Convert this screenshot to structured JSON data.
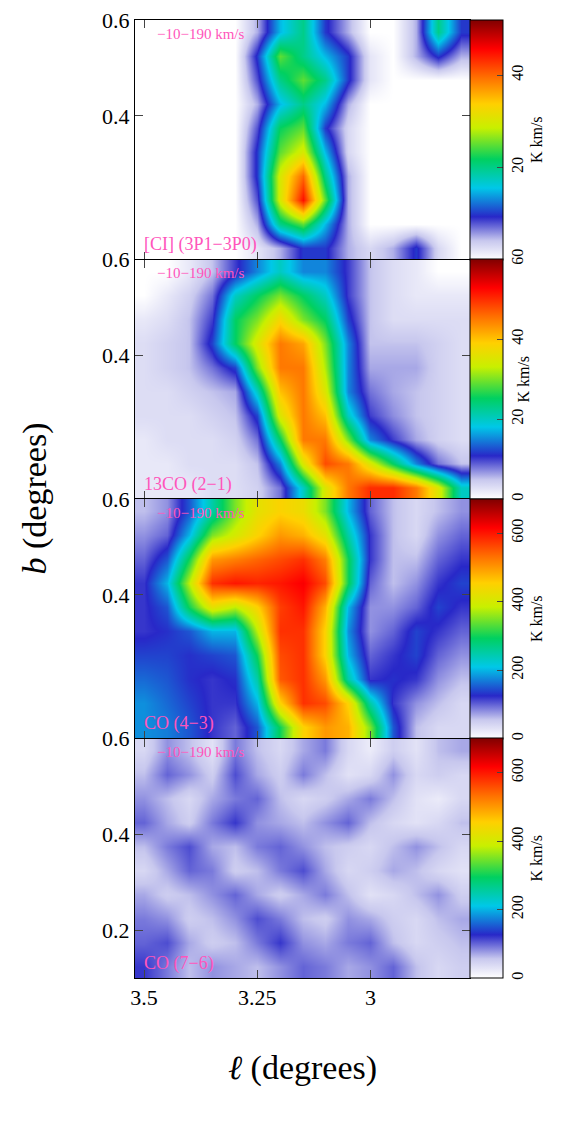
{
  "chart_data": [
    {
      "type": "heatmap",
      "title": "[CI] (3P1−3P0)",
      "annotation": "−10−190 km/s",
      "ylabel": "b (degrees)",
      "tick_labels": "y",
      "xlim": [
        3.52,
        2.78
      ],
      "ylim": [
        0.1,
        0.6
      ],
      "xticks": [
        3.5,
        3.25,
        3
      ],
      "yticks": [
        0.4,
        0.6
      ],
      "x": [
        3.5,
        3.45,
        3.4,
        3.35,
        3.3,
        3.25,
        3.2,
        3.15,
        3.1,
        3.05,
        3.0,
        2.95,
        2.9,
        2.85,
        2.8
      ],
      "y": [
        0.125,
        0.175,
        0.225,
        0.275,
        0.325,
        0.375,
        0.425,
        0.475,
        0.525,
        0.575
      ],
      "z": [
        [
          0,
          0,
          0,
          0,
          0,
          2,
          5,
          10,
          10,
          5,
          3,
          5,
          10,
          3,
          0
        ],
        [
          0,
          0,
          0,
          0,
          0,
          5,
          20,
          25,
          15,
          5,
          0,
          0,
          0,
          0,
          0
        ],
        [
          0,
          0,
          0,
          0,
          0,
          8,
          30,
          45,
          25,
          5,
          0,
          0,
          0,
          0,
          0
        ],
        [
          0,
          0,
          0,
          0,
          0,
          10,
          30,
          40,
          20,
          5,
          0,
          0,
          0,
          0,
          0
        ],
        [
          0,
          0,
          0,
          0,
          0,
          10,
          25,
          30,
          15,
          3,
          0,
          0,
          0,
          0,
          0
        ],
        [
          0,
          0,
          0,
          0,
          0,
          8,
          22,
          25,
          10,
          3,
          0,
          0,
          0,
          0,
          0
        ],
        [
          0,
          0,
          0,
          0,
          0,
          5,
          15,
          20,
          15,
          5,
          0,
          0,
          0,
          0,
          0
        ],
        [
          0,
          0,
          0,
          0,
          0,
          8,
          20,
          25,
          20,
          10,
          2,
          0,
          0,
          0,
          0
        ],
        [
          0,
          0,
          0,
          0,
          0,
          10,
          25,
          20,
          15,
          10,
          2,
          0,
          5,
          10,
          5
        ],
        [
          0,
          0,
          0,
          0,
          0,
          5,
          15,
          20,
          10,
          5,
          0,
          0,
          5,
          20,
          10
        ]
      ],
      "colorbar": {
        "range": [
          0,
          52
        ],
        "ticks": [
          20,
          40
        ],
        "label": "K km/s"
      }
    },
    {
      "type": "heatmap",
      "title": "13CO (2−1)",
      "annotation": "−10−190 km/s",
      "tick_labels": "y",
      "xlim": [
        3.52,
        2.78
      ],
      "ylim": [
        0.1,
        0.6
      ],
      "xticks": [
        3.5,
        3.25,
        3
      ],
      "yticks": [
        0.4,
        0.6
      ],
      "x": [
        3.5,
        3.45,
        3.4,
        3.35,
        3.3,
        3.25,
        3.2,
        3.15,
        3.1,
        3.05,
        3.0,
        2.95,
        2.9,
        2.85,
        2.8
      ],
      "y": [
        0.125,
        0.175,
        0.225,
        0.275,
        0.325,
        0.375,
        0.425,
        0.475,
        0.525,
        0.575
      ],
      "z": [
        [
          2,
          2,
          2,
          3,
          3,
          4,
          8,
          20,
          35,
          45,
          50,
          50,
          45,
          35,
          20
        ],
        [
          2,
          2,
          3,
          3,
          3,
          5,
          15,
          35,
          48,
          45,
          35,
          25,
          15,
          8,
          5
        ],
        [
          2,
          3,
          3,
          3,
          4,
          8,
          25,
          45,
          45,
          30,
          15,
          10,
          6,
          4,
          3
        ],
        [
          3,
          3,
          3,
          4,
          5,
          12,
          35,
          45,
          40,
          20,
          10,
          7,
          5,
          4,
          3
        ],
        [
          3,
          3,
          4,
          5,
          6,
          20,
          40,
          45,
          35,
          15,
          8,
          6,
          5,
          4,
          3
        ],
        [
          3,
          4,
          5,
          8,
          12,
          30,
          45,
          45,
          32,
          15,
          6,
          6,
          6,
          4,
          3
        ],
        [
          3,
          4,
          5,
          12,
          25,
          35,
          45,
          42,
          30,
          15,
          5,
          5,
          5,
          4,
          3
        ],
        [
          2,
          3,
          5,
          10,
          25,
          30,
          38,
          30,
          25,
          12,
          5,
          3,
          3,
          3,
          3
        ],
        [
          0,
          2,
          4,
          8,
          20,
          25,
          30,
          25,
          20,
          10,
          5,
          3,
          2,
          2,
          2
        ],
        [
          0,
          0,
          2,
          5,
          10,
          15,
          20,
          15,
          15,
          10,
          5,
          3,
          2,
          0,
          0
        ]
      ],
      "colorbar": {
        "range": [
          0,
          60
        ],
        "ticks": [
          0,
          20,
          40,
          60
        ],
        "label": "K km/s"
      }
    },
    {
      "type": "heatmap",
      "title": "CO (4−3)",
      "annotation": "−10−190 km/s",
      "tick_labels": "y",
      "xlim": [
        3.52,
        2.78
      ],
      "ylim": [
        0.1,
        0.6
      ],
      "xticks": [
        3.5,
        3.25,
        3
      ],
      "yticks": [
        0.4,
        0.6
      ],
      "x": [
        3.5,
        3.45,
        3.4,
        3.35,
        3.3,
        3.25,
        3.2,
        3.15,
        3.1,
        3.05,
        3.0,
        2.95,
        2.9,
        2.85,
        2.8
      ],
      "y": [
        0.125,
        0.175,
        0.225,
        0.275,
        0.325,
        0.375,
        0.425,
        0.475,
        0.525,
        0.575
      ],
      "z": [
        [
          180,
          170,
          150,
          120,
          100,
          150,
          300,
          450,
          500,
          480,
          350,
          150,
          60,
          40,
          40
        ],
        [
          180,
          160,
          140,
          120,
          120,
          200,
          450,
          580,
          560,
          450,
          250,
          120,
          80,
          60,
          40
        ],
        [
          160,
          150,
          130,
          120,
          130,
          250,
          550,
          580,
          500,
          250,
          120,
          130,
          120,
          80,
          60
        ],
        [
          140,
          140,
          130,
          140,
          150,
          300,
          560,
          580,
          450,
          200,
          100,
          120,
          140,
          100,
          80
        ],
        [
          120,
          130,
          150,
          200,
          200,
          380,
          580,
          580,
          450,
          180,
          80,
          100,
          140,
          120,
          100
        ],
        [
          120,
          150,
          300,
          420,
          380,
          450,
          570,
          600,
          480,
          200,
          80,
          80,
          100,
          140,
          120
        ],
        [
          120,
          200,
          380,
          580,
          600,
          590,
          600,
          620,
          560,
          300,
          100,
          60,
          80,
          120,
          140
        ],
        [
          100,
          150,
          300,
          500,
          520,
          540,
          560,
          580,
          520,
          300,
          120,
          60,
          60,
          100,
          120
        ],
        [
          80,
          100,
          200,
          350,
          400,
          450,
          500,
          480,
          420,
          250,
          120,
          60,
          40,
          80,
          100
        ],
        [
          60,
          80,
          150,
          250,
          350,
          420,
          450,
          430,
          350,
          200,
          100,
          60,
          40,
          60,
          80
        ]
      ],
      "colorbar": {
        "range": [
          0,
          700
        ],
        "ticks": [
          0,
          200,
          400,
          600
        ],
        "label": "K km/s"
      }
    },
    {
      "type": "heatmap",
      "title": "CO (7−6)",
      "annotation": "−10−190 km/s",
      "xlabel": "ℓ (degrees)",
      "xlim": [
        3.52,
        2.78
      ],
      "ylim": [
        0.1,
        0.6
      ],
      "xticks": [
        3.5,
        3.25,
        3
      ],
      "yticks": [
        0.2,
        0.4,
        0.6
      ],
      "x": [
        3.5,
        3.45,
        3.4,
        3.35,
        3.3,
        3.25,
        3.2,
        3.15,
        3.1,
        3.05,
        3.0,
        2.95,
        2.9,
        2.85,
        2.8
      ],
      "y": [
        0.125,
        0.175,
        0.225,
        0.275,
        0.325,
        0.375,
        0.425,
        0.475,
        0.525,
        0.575
      ],
      "z": [
        [
          120,
          90,
          60,
          80,
          70,
          60,
          80,
          100,
          90,
          70,
          80,
          100,
          60,
          40,
          50
        ],
        [
          100,
          110,
          70,
          50,
          60,
          90,
          120,
          80,
          70,
          90,
          100,
          60,
          40,
          50,
          60
        ],
        [
          90,
          80,
          50,
          60,
          80,
          110,
          90,
          60,
          50,
          80,
          70,
          50,
          40,
          60,
          70
        ],
        [
          70,
          50,
          60,
          80,
          100,
          70,
          50,
          70,
          90,
          60,
          30,
          40,
          60,
          80,
          50
        ],
        [
          40,
          70,
          100,
          90,
          50,
          60,
          90,
          110,
          70,
          40,
          50,
          70,
          60,
          40,
          30
        ],
        [
          60,
          90,
          110,
          70,
          60,
          90,
          100,
          80,
          60,
          50,
          40,
          60,
          80,
          60,
          40
        ],
        [
          100,
          70,
          50,
          90,
          120,
          80,
          70,
          60,
          80,
          100,
          60,
          40,
          30,
          40,
          60
        ],
        [
          80,
          60,
          40,
          70,
          90,
          100,
          60,
          40,
          50,
          70,
          90,
          60,
          30,
          20,
          40
        ],
        [
          60,
          100,
          80,
          50,
          110,
          70,
          50,
          90,
          60,
          30,
          40,
          80,
          40,
          50,
          40
        ],
        [
          40,
          80,
          60,
          30,
          90,
          60,
          40,
          70,
          90,
          40,
          20,
          50,
          30,
          60,
          70
        ]
      ],
      "colorbar": {
        "range": [
          0,
          700
        ],
        "ticks": [
          0,
          200,
          400,
          600
        ],
        "label": "K km/s"
      }
    }
  ]
}
